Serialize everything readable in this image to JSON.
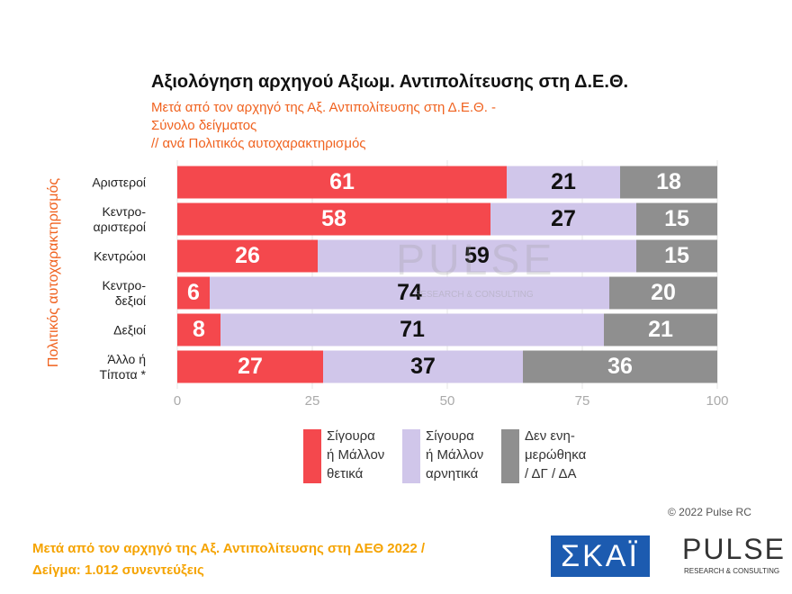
{
  "chart_data": {
    "type": "stacked-barh",
    "title": "Αξιολόγηση αρχηγού Αξιωμ. Αντιπολίτευσης στη Δ.Ε.Θ.",
    "subtitle": "Μετά από τον αρχηγό της Αξ. Αντιπολίτευσης στη Δ.Ε.Θ. -\nΣύνολο δείγματος\n // ανά Πολιτικός αυτοχαρακτηρισμός",
    "ylabel": "Πολιτικός αυτοχαρακτηρισμός",
    "categories": [
      "Αριστεροί",
      "Κεντρο-\nαριστεροί",
      "Κεντρώοι",
      "Κεντρο-\nδεξιοί",
      "Δεξιοί",
      "Άλλο ή\nΤίποτα *"
    ],
    "series": [
      {
        "name": "Σίγουρα\nή Μάλλον\nθετικά",
        "color": "#f4484d",
        "values": [
          61,
          58,
          26,
          6,
          8,
          27
        ]
      },
      {
        "name": "Σίγουρα\nή Μάλλον\nαρνητικά",
        "color": "#d0c6ea",
        "values": [
          21,
          27,
          59,
          74,
          71,
          37
        ]
      },
      {
        "name": "Δεν ενη-\nμερώθηκα\n/ ΔΓ / ΔΑ",
        "color": "#8f8f8f",
        "values": [
          18,
          15,
          15,
          20,
          21,
          36
        ]
      }
    ],
    "xlim": [
      0,
      100
    ],
    "xticks": [
      0,
      25,
      50,
      75,
      100
    ],
    "grid": true
  },
  "copyright": "© 2022 Pulse RC",
  "footer": [
    "Μετά από τον αρχηγό της Αξ. Αντιπολίτευσης στη ΔΕΘ  2022  /",
    "Δείγμα:  1.012 συνεντεύξεις"
  ],
  "logos": {
    "skai": "ΣΚΑΪ",
    "pulse": "PULSE",
    "pulse_sub": "RESEARCH & CONSULTING"
  }
}
